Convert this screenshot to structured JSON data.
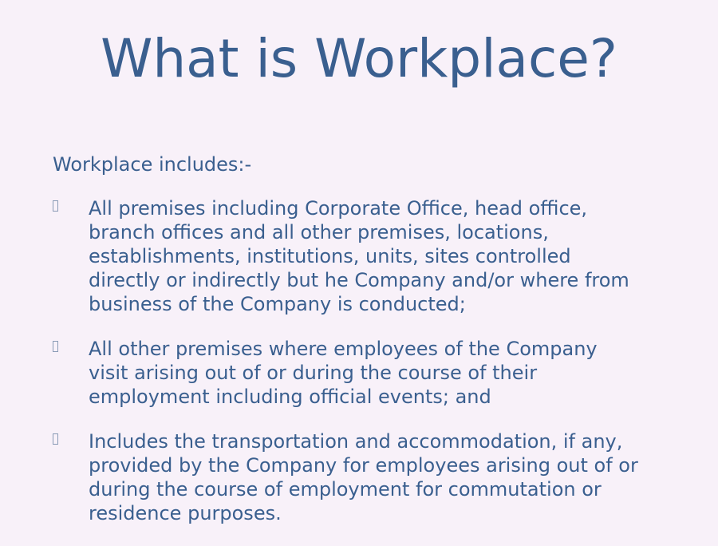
{
  "slide": {
    "title": "What is Workplace?",
    "intro": "Workplace includes:-",
    "bullets": [
      {
        "lines": [
          "All premises including Corporate Office, head office,",
          "branch offices and all other premises, locations,",
          "establishments, institutions, units, sites controlled",
          "directly or indirectly but he Company and/or where from",
          "business of the Company is conducted;"
        ]
      },
      {
        "lines": [
          "All other premises where employees of the Company",
          "visit arising out of or during the course of their",
          "employment including official events; and"
        ]
      },
      {
        "lines": [
          "Includes the transportation and accommodation, if any,",
          "provided by the Company for employees arising out of or",
          "during the course of employment for commutation or",
          "residence purposes."
        ]
      }
    ],
    "bullet_icon": "square-bullet-icon",
    "colors": {
      "background": "#f8f1f9",
      "text": "#3a5f8f"
    }
  }
}
